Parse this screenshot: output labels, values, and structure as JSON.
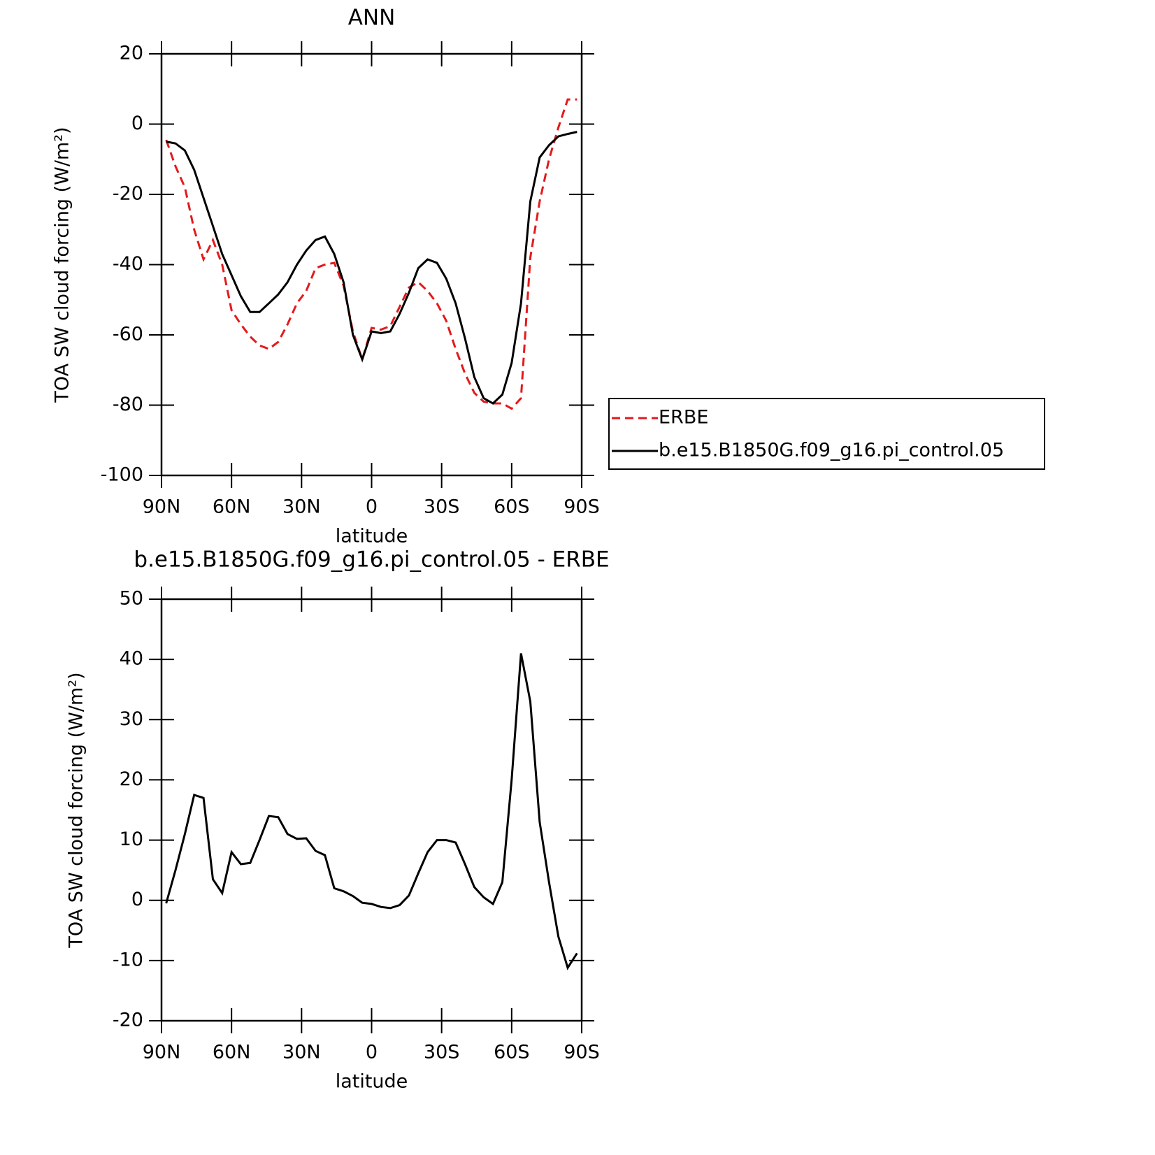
{
  "chart_data": [
    {
      "type": "line",
      "title": "ANN",
      "xlabel": "latitude",
      "ylabel": "TOA SW cloud forcing (W/m²)",
      "x": [
        88,
        84,
        80,
        76,
        72,
        68,
        64,
        60,
        56,
        52,
        48,
        44,
        40,
        36,
        32,
        28,
        24,
        20,
        16,
        12,
        8,
        4,
        0,
        -4,
        -8,
        -12,
        -16,
        -20,
        -24,
        -28,
        -32,
        -36,
        -40,
        -44,
        -48,
        -52,
        -56,
        -60,
        -64,
        -68,
        -72,
        -76,
        -80,
        -84,
        -88
      ],
      "xlim": [
        90,
        -90
      ],
      "xticks": [
        {
          "value": 90,
          "label": "90N"
        },
        {
          "value": 60,
          "label": "60N"
        },
        {
          "value": 30,
          "label": "30N"
        },
        0,
        {
          "value": -30,
          "label": "30S"
        },
        {
          "value": -60,
          "label": "60S"
        },
        {
          "value": -90,
          "label": "90S"
        }
      ],
      "ylim": [
        -100,
        20
      ],
      "yticks": [
        -100,
        -80,
        -60,
        -40,
        -20,
        0,
        20
      ],
      "legend": "right",
      "series": [
        {
          "name": "ERBE",
          "color": "#e41a1c",
          "line_style": "dashed",
          "values": [
            -4.5,
            -12,
            -18,
            -30,
            -38.5,
            -33,
            -40,
            -53,
            -57,
            -60.5,
            -63,
            -64,
            -62,
            -57,
            -51,
            -47.5,
            -41,
            -40,
            -39.5,
            -46,
            -59,
            -67,
            -58,
            -58.5,
            -57.5,
            -52,
            -46.5,
            -45,
            -47.5,
            -51,
            -56,
            -64,
            -71,
            -76.5,
            -79,
            -79.5,
            -79.5,
            -81,
            -78,
            -38,
            -22,
            -10,
            -1,
            7,
            7
          ]
        },
        {
          "name": "b.e15.B1850G.f09_g16.pi_control.05",
          "color": "#000000",
          "line_style": "solid",
          "values": [
            -5,
            -5.5,
            -7.5,
            -13,
            -21,
            -29,
            -37,
            -43,
            -49,
            -53.5,
            -53.5,
            -51,
            -48.5,
            -45,
            -40,
            -36,
            -33,
            -32,
            -37,
            -45,
            -60,
            -67,
            -59,
            -59.5,
            -59,
            -54,
            -48,
            -41,
            -38.5,
            -39.5,
            -44,
            -51,
            -61,
            -72,
            -78,
            -79.5,
            -77,
            -68,
            -51,
            -22,
            -9.5,
            -6,
            -3.5,
            -2.8,
            -2.2
          ]
        }
      ]
    },
    {
      "type": "line",
      "title": "b.e15.B1850G.f09_g16.pi_control.05 - ERBE",
      "xlabel": "latitude",
      "ylabel": "TOA SW cloud forcing (W/m²)",
      "x": [
        88,
        84,
        80,
        76,
        72,
        68,
        64,
        60,
        56,
        52,
        48,
        44,
        40,
        36,
        32,
        28,
        24,
        20,
        16,
        12,
        8,
        4,
        0,
        -4,
        -8,
        -12,
        -16,
        -20,
        -24,
        -28,
        -32,
        -36,
        -40,
        -44,
        -48,
        -52,
        -56,
        -60,
        -64,
        -68,
        -72,
        -76,
        -80,
        -84,
        -88
      ],
      "xlim": [
        90,
        -90
      ],
      "xticks": [
        {
          "value": 90,
          "label": "90N"
        },
        {
          "value": 60,
          "label": "60N"
        },
        {
          "value": 30,
          "label": "30N"
        },
        0,
        {
          "value": -30,
          "label": "30S"
        },
        {
          "value": -60,
          "label": "60S"
        },
        {
          "value": -90,
          "label": "90S"
        }
      ],
      "ylim": [
        -20,
        50
      ],
      "yticks": [
        -20,
        -10,
        0,
        10,
        20,
        30,
        40,
        50
      ],
      "series": [
        {
          "color": "#000000",
          "line_style": "solid",
          "values": [
            -0.5,
            5,
            11,
            17.5,
            17,
            3.5,
            1.2,
            8,
            6,
            6.2,
            10,
            14,
            13.8,
            11,
            10.2,
            10.3,
            8.2,
            7.5,
            2,
            1.5,
            0.7,
            -0.4,
            -0.6,
            -1.1,
            -1.3,
            -0.8,
            0.8,
            4.5,
            8,
            10,
            10,
            9.6,
            6,
            2.2,
            0.5,
            -0.6,
            3,
            20,
            41,
            33,
            13,
            3,
            -6,
            -11.2,
            -8.8
          ]
        }
      ]
    }
  ]
}
